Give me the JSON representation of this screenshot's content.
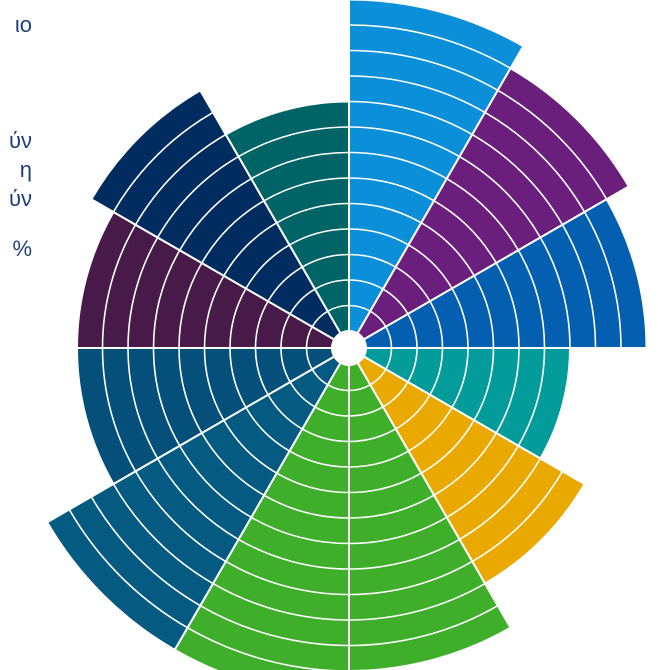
{
  "side_text": [
    "ιο",
    "ύν",
    "η",
    "ύν",
    "%"
  ],
  "chart_data": {
    "type": "polar-area",
    "title": "",
    "ring_step": 1,
    "sectors": [
      {
        "value": 13,
        "color": "#0a8fd8"
      },
      {
        "value": 12,
        "color": "#6b1f7c"
      },
      {
        "value": 11,
        "color": "#055fb0"
      },
      {
        "value": 8,
        "color": "#049c9a"
      },
      {
        "value": 10,
        "color": "#e9a900"
      },
      {
        "value": 12,
        "color": "#3fae2a"
      },
      {
        "value": 13,
        "color": "#3fae2a"
      },
      {
        "value": 13,
        "color": "#055a82"
      },
      {
        "value": 10,
        "color": "#05507a"
      },
      {
        "value": 10,
        "color": "#471a4a"
      },
      {
        "value": 11,
        "color": "#002c5f"
      },
      {
        "value": 9,
        "color": "#006366"
      }
    ]
  }
}
